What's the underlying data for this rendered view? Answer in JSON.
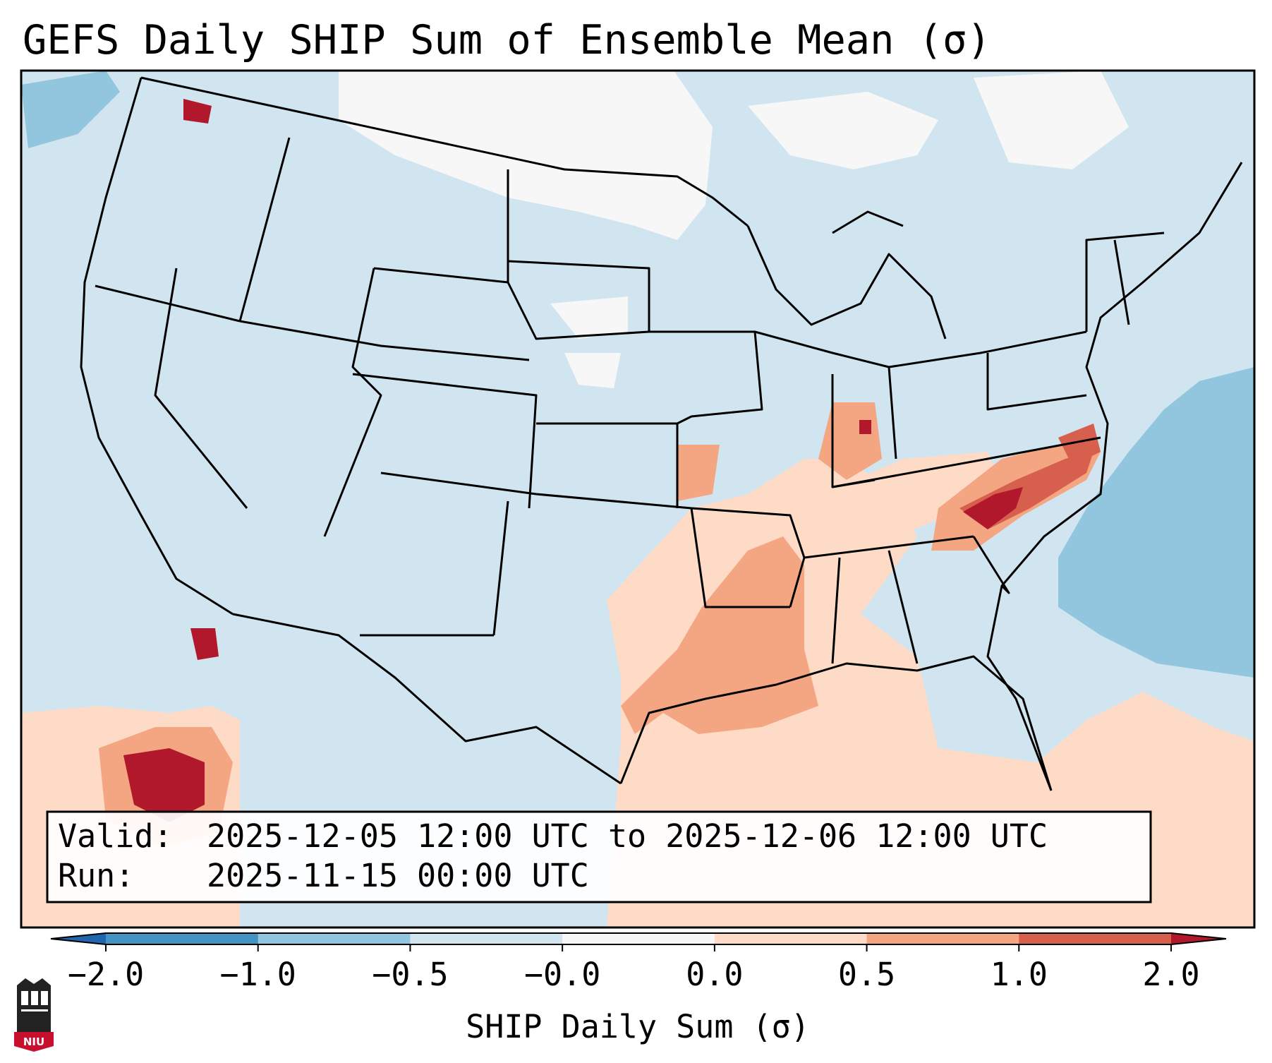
{
  "title": "GEFS Daily SHIP Sum of Ensemble Mean (σ)",
  "info_box": {
    "valid_label": "Valid:",
    "valid_value": "2025-12-05 12:00 UTC to 2025-12-06 12:00 UTC",
    "run_label": "Run:",
    "run_value": "2025-11-15 00:00 UTC"
  },
  "colorbar": {
    "label": "SHIP Daily Sum (σ)",
    "ticks": [
      "−2.0",
      "−1.0",
      "−0.5",
      "−0.0",
      "0.0",
      "0.5",
      "1.0",
      "2.0"
    ],
    "bins": [
      {
        "range": "< -2.0",
        "color": "#2166ac"
      },
      {
        "range": "-2.0 to -1.0",
        "color": "#4393c3"
      },
      {
        "range": "-1.0 to -0.5",
        "color": "#92c5de"
      },
      {
        "range": "-0.5 to -0.0",
        "color": "#d1e5f0"
      },
      {
        "range": "-0.0 to 0.0",
        "color": "#f7f7f7"
      },
      {
        "range": "0.0 to 0.5",
        "color": "#fddbc7"
      },
      {
        "range": "0.5 to 1.0",
        "color": "#f4a582"
      },
      {
        "range": "1.0 to 2.0",
        "color": "#d6604d"
      },
      {
        "range": "> 2.0",
        "color": "#b2182b"
      }
    ]
  },
  "map": {
    "region": "Contiguous United States",
    "projection": "Lambert Conformal",
    "background_level": "-0.5 to -0.0",
    "highlights": [
      {
        "area": "Gulf Coast / Lower Mississippi Valley",
        "level": "0.0 to 1.0"
      },
      {
        "area": "North Carolina / Virginia",
        "level": "> 2.0"
      },
      {
        "area": "Eastern Pacific off Mexico",
        "level": "> 2.0"
      },
      {
        "area": "Western Atlantic",
        "level": "-1.0 to -0.5"
      },
      {
        "area": "Upper Midwest / Canada",
        "level": "-0.0 to 0.0"
      }
    ]
  },
  "logo": {
    "text": "NIU"
  }
}
